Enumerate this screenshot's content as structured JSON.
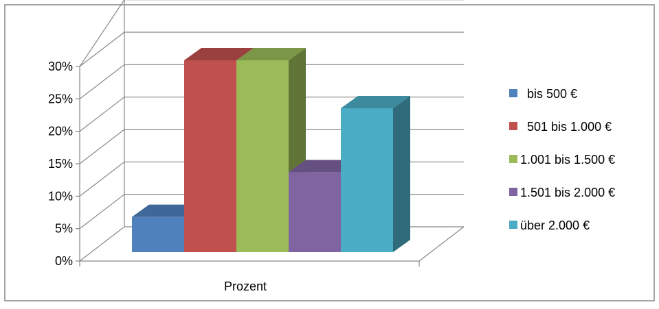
{
  "chart_data": {
    "type": "bar",
    "style": "3d-clustered-column",
    "title": "",
    "xlabel": "",
    "ylabel": "",
    "categories": [
      "Prozent"
    ],
    "ylim": [
      0,
      30
    ],
    "y_ticks": [
      "0%",
      "5%",
      "10%",
      "15%",
      "20%",
      "25%",
      "30%"
    ],
    "grid": true,
    "legend_position": "right",
    "series": [
      {
        "name": "  bis 500 €",
        "values": [
          5.5
        ],
        "color": "#4F81BD"
      },
      {
        "name": "  501 bis 1.000 €",
        "values": [
          30
        ],
        "color": "#C0504D"
      },
      {
        "name": "1.001 bis 1.500 €",
        "values": [
          30
        ],
        "color": "#9BBB59"
      },
      {
        "name": "1.501 bis 2.000 €",
        "values": [
          12.5
        ],
        "color": "#8064A2"
      },
      {
        "name": "über 2.000 €",
        "values": [
          22.5
        ],
        "color": "#4BACC6"
      }
    ]
  }
}
